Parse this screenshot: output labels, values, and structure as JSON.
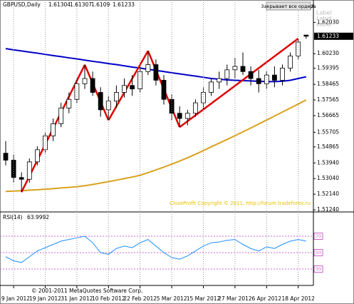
{
  "chart_data": [
    {
      "type": "candlestick",
      "title": "GBPUSD,Daily",
      "categories": [
        null,
        "9 Jan 2012",
        null,
        null,
        null,
        "19 Jan 2012",
        null,
        null,
        null,
        "31 Jan 2012",
        null,
        null,
        null,
        "10 Feb 2012",
        null,
        null,
        null,
        "22 Feb 2012",
        null,
        null,
        null,
        "5 Mar 2012",
        null,
        null,
        null,
        "15 Mar 2012",
        null,
        null,
        null,
        "27 Mar 2012",
        null,
        null,
        null,
        "6 Apr 2012",
        null,
        null,
        null,
        "18 Apr 2012",
        null
      ],
      "open": [
        1.545,
        1.541,
        1.531,
        1.53,
        1.54,
        1.547,
        1.555,
        1.562,
        1.571,
        1.576,
        1.585,
        1.588,
        1.58,
        1.57,
        1.575,
        1.58,
        1.584,
        1.582,
        1.592,
        1.596,
        1.587,
        1.576,
        1.568,
        1.565,
        1.568,
        1.574,
        1.58,
        1.586,
        1.588,
        1.593,
        1.595,
        1.592,
        1.588,
        1.585,
        1.59,
        1.587,
        1.594,
        1.601,
        1.61304
      ],
      "high": [
        1.552,
        1.544,
        1.534,
        1.542,
        1.549,
        1.557,
        1.565,
        1.574,
        1.58,
        1.588,
        1.5959,
        1.592,
        1.583,
        1.578,
        1.584,
        1.588,
        1.59,
        1.595,
        1.6039,
        1.599,
        1.59,
        1.579,
        1.572,
        1.57,
        1.576,
        1.583,
        1.588,
        1.592,
        1.596,
        1.6,
        1.603,
        1.595,
        1.593,
        1.592,
        1.595,
        1.596,
        1.603,
        1.611,
        1.61307
      ],
      "low": [
        1.538,
        1.528,
        1.5226,
        1.528,
        1.538,
        1.545,
        1.552,
        1.56,
        1.568,
        1.574,
        1.582,
        1.578,
        1.566,
        1.564,
        1.571,
        1.577,
        1.578,
        1.58,
        1.59,
        1.584,
        1.573,
        1.564,
        1.56,
        1.561,
        1.566,
        1.57,
        1.578,
        1.582,
        1.584,
        1.588,
        1.59,
        1.584,
        1.58,
        1.582,
        1.583,
        1.584,
        1.592,
        1.599,
        1.6109
      ],
      "close": [
        1.541,
        1.531,
        1.53,
        1.54,
        1.547,
        1.555,
        1.562,
        1.571,
        1.576,
        1.585,
        1.588,
        1.58,
        1.57,
        1.575,
        1.58,
        1.584,
        1.582,
        1.592,
        1.596,
        1.587,
        1.576,
        1.568,
        1.565,
        1.568,
        1.574,
        1.58,
        1.586,
        1.588,
        1.593,
        1.595,
        1.592,
        1.588,
        1.585,
        1.59,
        1.587,
        1.594,
        1.601,
        1.609,
        1.61233
      ],
      "up_color": "#ffffff",
      "down_color": "#000000",
      "lines": [
        {
          "color": "#0000c8",
          "values": [
            1.6052,
            1.6045,
            1.6039,
            1.6032,
            1.6026,
            1.6019,
            1.6012,
            1.6006,
            1.5999,
            1.5993,
            1.5986,
            1.5979,
            1.5973,
            1.5966,
            1.596,
            1.5953,
            1.5946,
            1.594,
            1.5933,
            1.5927,
            1.592,
            1.5913,
            1.5907,
            1.59,
            1.5894,
            1.5887,
            1.588,
            1.5876,
            1.5872,
            1.587,
            1.5868,
            1.5866,
            1.5864,
            1.5862,
            1.5862,
            1.5864,
            1.587,
            1.588,
            1.589
          ]
        },
        {
          "color": "#d9a21b",
          "values": [
            1.523,
            1.5232,
            1.5234,
            1.5237,
            1.524,
            1.5243,
            1.5246,
            1.525,
            1.5253,
            1.5257,
            1.5263,
            1.527,
            1.5278,
            1.5286,
            1.5295,
            1.5304,
            1.5313,
            1.5323,
            1.5338,
            1.5354,
            1.537,
            1.5387,
            1.5405,
            1.5424,
            1.5444,
            1.5465,
            1.5487,
            1.5508,
            1.5529,
            1.5551,
            1.5573,
            1.5595,
            1.5618,
            1.5641,
            1.5664,
            1.5687,
            1.571,
            1.5733,
            1.5757
          ]
        }
      ],
      "zigzag": {
        "color": "#e00000",
        "values": [
          null,
          null,
          1.5226,
          null,
          null,
          null,
          null,
          null,
          null,
          null,
          1.5959,
          null,
          null,
          1.564,
          null,
          null,
          null,
          null,
          1.6039,
          null,
          null,
          null,
          1.56,
          null,
          null,
          null,
          null,
          null,
          null,
          null,
          null,
          null,
          null,
          null,
          null,
          null,
          null,
          1.611,
          null
        ]
      },
      "ylim": [
        1.5116,
        1.6332
      ],
      "yticks": [
        {
          "value": 1.6203,
          "label": "1.62030"
        },
        {
          "value": 1.6023,
          "label": "1.60230"
        },
        1.59395,
        1.58465,
        1.57565,
        1.56665,
        1.55705,
        1.54865,
        {
          "value": 1.5394,
          "label": "1.53940"
        },
        {
          "value": 1.5304,
          "label": "1.53040"
        },
        {
          "value": 1.5214,
          "label": "1.52140"
        },
        {
          "value": 1.5124,
          "label": "1.51240"
        }
      ]
    },
    {
      "type": "line",
      "title": "RSI(14)",
      "color": "#1e90ff",
      "values": [
        45,
        40,
        38,
        45,
        52,
        56,
        60,
        64,
        66,
        68,
        70,
        62,
        50,
        48,
        55,
        58,
        56,
        62,
        66,
        58,
        50,
        44,
        42,
        46,
        52,
        58,
        62,
        63,
        65,
        66,
        60,
        55,
        52,
        57,
        55,
        60,
        64,
        66,
        63.9992
      ],
      "ylim": [
        10,
        98.7
      ],
      "yticks": [
        70,
        50,
        30
      ],
      "level_color": "#cc66cc"
    }
  ],
  "window": {
    "button": "Закрывает все ордера",
    "close": "x",
    "labels": [
      "Label",
      "Label",
      "Label"
    ],
    "copyright_ea": "CloseProfit Copyright © 2011, http://forum.tradeforex.ru",
    "copyright": "© 2001-2011 MetaQuotes Software Corp."
  }
}
